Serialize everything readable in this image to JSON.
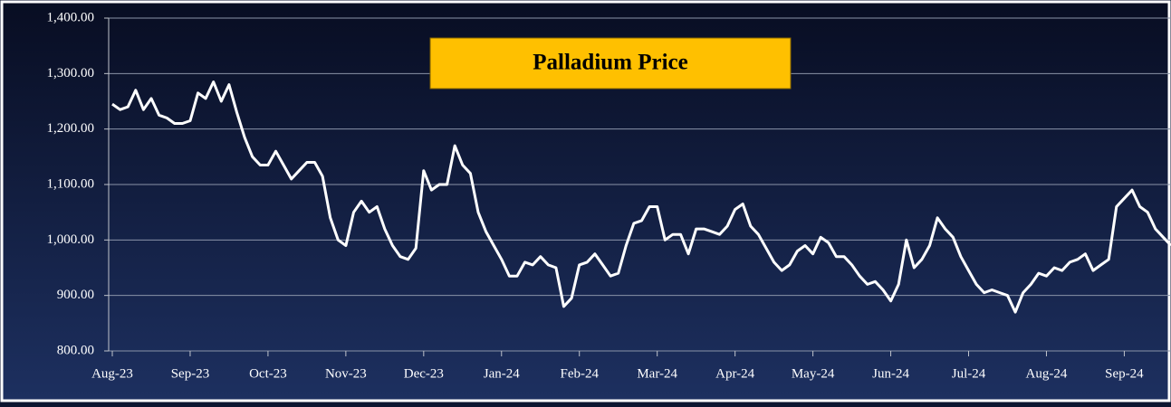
{
  "chart_data": {
    "type": "line",
    "title": "Palladium Price",
    "categories": [
      "Aug-23",
      null,
      null,
      null,
      null,
      null,
      null,
      null,
      null,
      null,
      "Sep-23",
      null,
      null,
      null,
      null,
      null,
      null,
      null,
      null,
      null,
      "Oct-23",
      null,
      null,
      null,
      null,
      null,
      null,
      null,
      null,
      null,
      "Nov-23",
      null,
      null,
      null,
      null,
      null,
      null,
      null,
      null,
      null,
      "Dec-23",
      null,
      null,
      null,
      null,
      null,
      null,
      null,
      null,
      null,
      "Jan-24",
      null,
      null,
      null,
      null,
      null,
      null,
      null,
      null,
      null,
      "Feb-24",
      null,
      null,
      null,
      null,
      null,
      null,
      null,
      null,
      null,
      "Mar-24",
      null,
      null,
      null,
      null,
      null,
      null,
      null,
      null,
      null,
      "Apr-24",
      null,
      null,
      null,
      null,
      null,
      null,
      null,
      null,
      null,
      "May-24",
      null,
      null,
      null,
      null,
      null,
      null,
      null,
      null,
      null,
      "Jun-24",
      null,
      null,
      null,
      null,
      null,
      null,
      null,
      null,
      null,
      "Jul-24",
      null,
      null,
      null,
      null,
      null,
      null,
      null,
      null,
      null,
      "Aug-24",
      null,
      null,
      null,
      null,
      null,
      null,
      null,
      null,
      null,
      "Sep-24",
      null,
      null,
      null,
      null,
      null,
      null
    ],
    "series": [
      {
        "name": "Palladium Price",
        "color": "#ffffff",
        "values": [
          1245,
          1235,
          1240,
          1270,
          1235,
          1255,
          1225,
          1220,
          1210,
          1210,
          1215,
          1265,
          1255,
          1285,
          1250,
          1280,
          1230,
          1185,
          1150,
          1135,
          1135,
          1160,
          1135,
          1110,
          1125,
          1140,
          1140,
          1115,
          1040,
          1000,
          990,
          1050,
          1070,
          1050,
          1060,
          1020,
          990,
          970,
          965,
          985,
          1125,
          1090,
          1100,
          1100,
          1170,
          1135,
          1120,
          1050,
          1015,
          990,
          965,
          935,
          935,
          960,
          955,
          970,
          955,
          950,
          880,
          895,
          955,
          960,
          975,
          955,
          935,
          940,
          990,
          1030,
          1035,
          1060,
          1060,
          1000,
          1010,
          1010,
          975,
          1020,
          1020,
          1015,
          1010,
          1025,
          1055,
          1065,
          1025,
          1010,
          985,
          960,
          945,
          955,
          980,
          990,
          975,
          1005,
          995,
          970,
          970,
          955,
          935,
          920,
          925,
          910,
          890,
          920,
          1000,
          950,
          965,
          990,
          1040,
          1020,
          1005,
          970,
          945,
          920,
          905,
          910,
          905,
          900,
          870,
          905,
          920,
          940,
          935,
          950,
          945,
          960,
          965,
          975,
          945,
          955,
          965,
          1060,
          1075,
          1090,
          1060,
          1050,
          1020,
          1005,
          990
        ]
      }
    ],
    "ylim": [
      800,
      1400
    ],
    "yticks": [
      {
        "value": 800,
        "label": "800.00"
      },
      {
        "value": 900,
        "label": "900.00"
      },
      {
        "value": 1000,
        "label": "1,000.00"
      },
      {
        "value": 1100,
        "label": "1,100.00"
      },
      {
        "value": 1200,
        "label": "1,200.00"
      },
      {
        "value": 1300,
        "label": "1,300.00"
      },
      {
        "value": 1400,
        "label": "1,400.00"
      }
    ],
    "grid": true
  }
}
